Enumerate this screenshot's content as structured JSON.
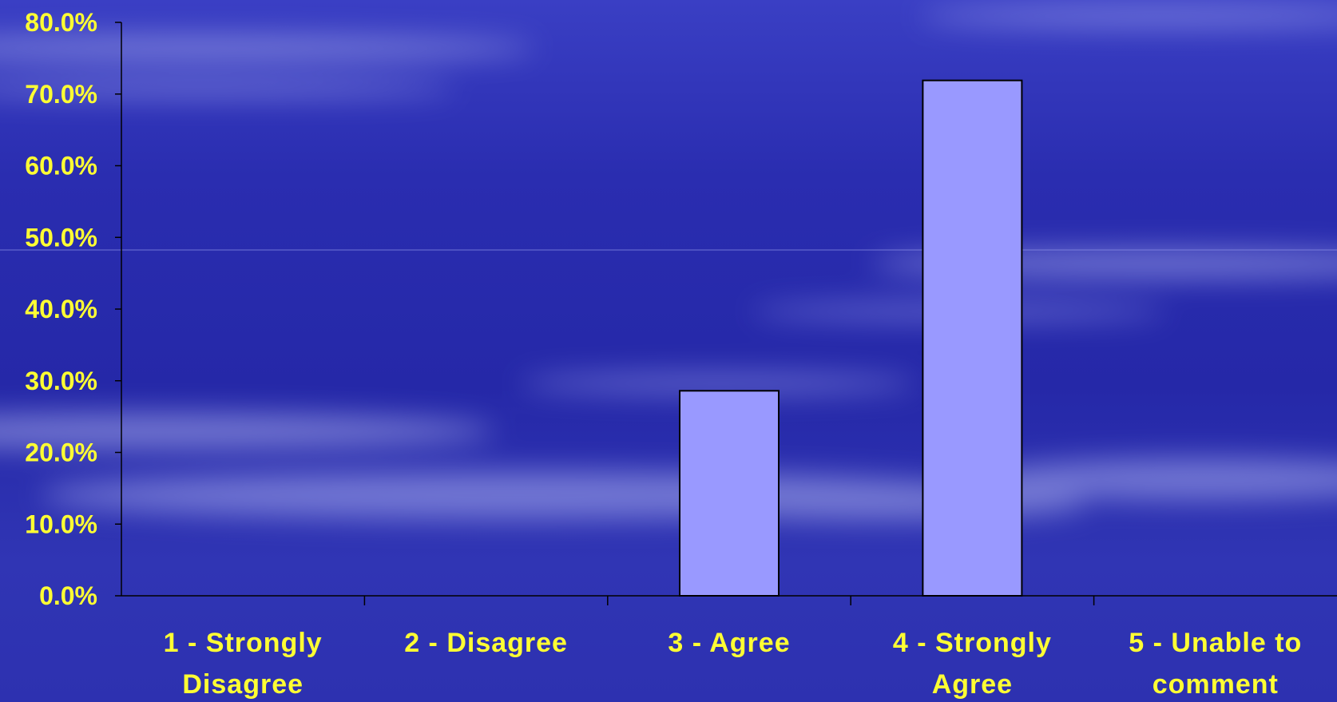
{
  "colors": {
    "background": "#2a2db0",
    "bar_fill": "#9999ff",
    "bar_stroke": "#000000",
    "label_text": "#ffff33",
    "axis": "#000000"
  },
  "chart_data": {
    "type": "bar",
    "categories": [
      [
        "1 - Strongly",
        "Disagree"
      ],
      [
        "2 - Disagree"
      ],
      [
        "3 - Agree"
      ],
      [
        "4 - Strongly",
        "Agree"
      ],
      [
        "5 - Unable to",
        "comment"
      ]
    ],
    "values": [
      0.0,
      0.0,
      28.6,
      71.9,
      0.0
    ],
    "y_tick_labels": [
      "0.0%",
      "10.0%",
      "20.0%",
      "30.0%",
      "40.0%",
      "50.0%",
      "60.0%",
      "70.0%",
      "80.0%"
    ],
    "ylim": [
      0,
      80
    ],
    "grid": false,
    "legend": "none",
    "title": "",
    "xlabel": "",
    "ylabel": ""
  }
}
